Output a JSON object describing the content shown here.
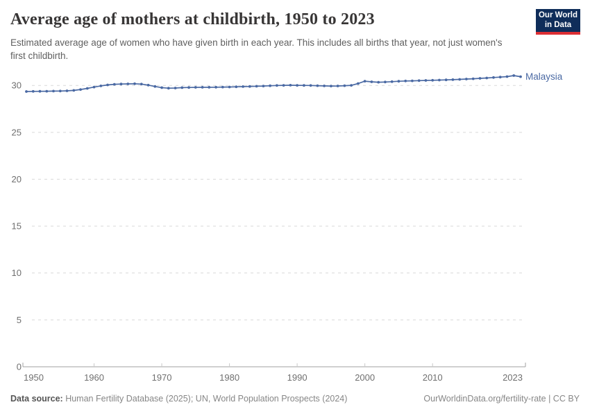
{
  "header": {
    "title": "Average age of mothers at childbirth, 1950 to 2023",
    "subtitle": "Estimated average age of women who have given birth in each year. This includes all births that year, not just women's first childbirth."
  },
  "logo": {
    "line1": "Our World",
    "line2": "in Data",
    "bg_color": "#0f2d5a",
    "stripe_color": "#dc2f34"
  },
  "chart_data": {
    "type": "line",
    "title": "Average age of mothers at childbirth, 1950 to 2023",
    "xlabel": "",
    "ylabel": "",
    "xlim": [
      1950,
      2023
    ],
    "ylim": [
      0,
      31.8
    ],
    "x_ticks": [
      1950,
      1960,
      1970,
      1980,
      1990,
      2000,
      2010,
      2023
    ],
    "y_ticks": [
      0,
      5,
      10,
      15,
      20,
      25,
      30
    ],
    "grid": "horizontal-dashed",
    "legend_position": "line-end-label",
    "x": [
      1950,
      1951,
      1952,
      1953,
      1954,
      1955,
      1956,
      1957,
      1958,
      1959,
      1960,
      1961,
      1962,
      1963,
      1964,
      1965,
      1966,
      1967,
      1968,
      1969,
      1970,
      1971,
      1972,
      1973,
      1974,
      1975,
      1976,
      1977,
      1978,
      1979,
      1980,
      1981,
      1982,
      1983,
      1984,
      1985,
      1986,
      1987,
      1988,
      1989,
      1990,
      1991,
      1992,
      1993,
      1994,
      1995,
      1996,
      1997,
      1998,
      1999,
      2000,
      2001,
      2002,
      2003,
      2004,
      2005,
      2006,
      2007,
      2008,
      2009,
      2010,
      2011,
      2012,
      2013,
      2014,
      2015,
      2016,
      2017,
      2018,
      2019,
      2020,
      2021,
      2022,
      2023
    ],
    "series": [
      {
        "name": "Malaysia",
        "color": "#4a69a3",
        "values": [
          29.35,
          29.36,
          29.37,
          29.38,
          29.39,
          29.4,
          29.42,
          29.47,
          29.56,
          29.68,
          29.82,
          29.95,
          30.05,
          30.12,
          30.15,
          30.16,
          30.18,
          30.14,
          30.03,
          29.89,
          29.76,
          29.7,
          29.72,
          29.76,
          29.78,
          29.79,
          29.8,
          29.8,
          29.81,
          29.82,
          29.83,
          29.85,
          29.87,
          29.89,
          29.91,
          29.93,
          29.96,
          29.99,
          30.01,
          30.02,
          30.01,
          30.0,
          29.99,
          29.97,
          29.95,
          29.93,
          29.94,
          29.97,
          30.01,
          30.2,
          30.45,
          30.38,
          30.34,
          30.36,
          30.4,
          30.44,
          30.47,
          30.49,
          30.51,
          30.53,
          30.55,
          30.57,
          30.59,
          30.61,
          30.64,
          30.68,
          30.71,
          30.75,
          30.79,
          30.84,
          30.89,
          30.94,
          31.05,
          30.93
        ]
      }
    ],
    "colors": {
      "gridline": "#d9d9d9",
      "axis_line": "#a0a0a0",
      "tick_label": "#6f6f6f"
    }
  },
  "footer": {
    "source_label": "Data source:",
    "source_rest": " Human Fertility Database (2025); UN, World Population Prospects (2024)",
    "link": "OurWorldinData.org/fertility-rate | CC BY"
  }
}
